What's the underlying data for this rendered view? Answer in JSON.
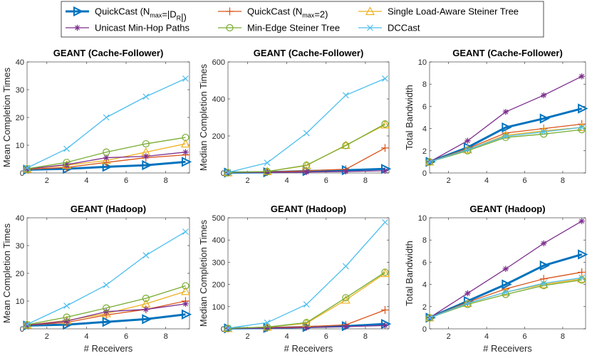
{
  "legend": {
    "entries": [
      {
        "id": "qc_full",
        "label_pre": "QuickCast (N",
        "label_sub1": "max",
        "label_mid": "=|D",
        "label_sub2": "R",
        "label_post": "|)",
        "color": "#0072BD",
        "marker": "triangle-right",
        "width": 3
      },
      {
        "id": "qc2",
        "label_pre": "QuickCast (N",
        "label_sub1": "max",
        "label_mid": "=2)",
        "label_sub2": "",
        "label_post": "",
        "color": "#D95319",
        "marker": "plus",
        "width": 1.3
      },
      {
        "id": "slast",
        "label_pre": "Single Load-Aware Steiner Tree",
        "label_sub1": "",
        "label_mid": "",
        "label_sub2": "",
        "label_post": "",
        "color": "#EDB120",
        "marker": "triangle-up",
        "width": 1.3
      },
      {
        "id": "unicast",
        "label_pre": "Unicast Min-Hop Paths",
        "label_sub1": "",
        "label_mid": "",
        "label_sub2": "",
        "label_post": "",
        "color": "#7E2F8E",
        "marker": "asterisk",
        "width": 1.3
      },
      {
        "id": "mest",
        "label_pre": "Min-Edge Steiner Tree",
        "label_sub1": "",
        "label_mid": "",
        "label_sub2": "",
        "label_post": "",
        "color": "#77AC30",
        "marker": "circle",
        "width": 1.3
      },
      {
        "id": "dccast",
        "label_pre": "DCCast",
        "label_sub1": "",
        "label_mid": "",
        "label_sub2": "",
        "label_post": "",
        "color": "#4DBEEE",
        "marker": "x",
        "width": 1.3
      }
    ]
  },
  "chart_data": [
    {
      "type": "line",
      "title": "GEANT (Cache-Follower)",
      "xlabel": "",
      "ylabel": "Mean Completion Times",
      "x": [
        1,
        3,
        5,
        7,
        9
      ],
      "xlim": [
        1,
        9.2
      ],
      "ylim": [
        0,
        40
      ],
      "xticks": [
        2,
        4,
        6,
        8
      ],
      "yticks": [
        0,
        10,
        20,
        30,
        40
      ],
      "series": [
        {
          "id": "qc_full",
          "values": [
            1.2,
            1.5,
            2.2,
            2.8,
            4.0
          ]
        },
        {
          "id": "qc2",
          "values": [
            1.3,
            2.0,
            3.8,
            5.5,
            6.5
          ]
        },
        {
          "id": "slast",
          "values": [
            1.4,
            2.8,
            4.5,
            7.5,
            10.5
          ]
        },
        {
          "id": "unicast",
          "values": [
            1.4,
            3.0,
            5.5,
            6.0,
            7.5
          ]
        },
        {
          "id": "mest",
          "values": [
            1.5,
            3.8,
            7.5,
            10.5,
            12.8
          ]
        },
        {
          "id": "dccast",
          "values": [
            1.8,
            8.7,
            20.0,
            27.5,
            34.0
          ]
        }
      ]
    },
    {
      "type": "line",
      "title": "GEANT (Cache-Follower)",
      "xlabel": "",
      "ylabel": "Median Completion Times",
      "x": [
        1,
        3,
        5,
        7,
        9
      ],
      "xlim": [
        1,
        9.2
      ],
      "ylim": [
        0,
        600
      ],
      "xticks": [
        2,
        4,
        6,
        8
      ],
      "yticks": [
        0,
        200,
        400,
        600
      ],
      "series": [
        {
          "id": "qc_full",
          "values": [
            2,
            4,
            10,
            15,
            22
          ]
        },
        {
          "id": "qc2",
          "values": [
            2,
            5,
            12,
            20,
            135
          ]
        },
        {
          "id": "slast",
          "values": [
            2,
            8,
            40,
            150,
            260
          ]
        },
        {
          "id": "unicast",
          "values": [
            2,
            3,
            5,
            8,
            12
          ]
        },
        {
          "id": "mest",
          "values": [
            2,
            8,
            42,
            148,
            265
          ]
        },
        {
          "id": "dccast",
          "values": [
            3,
            55,
            215,
            420,
            510
          ]
        }
      ]
    },
    {
      "type": "line",
      "title": "GEANT (Cache-Follower)",
      "xlabel": "",
      "ylabel": "Total Bandwidth",
      "x": [
        1,
        3,
        5,
        7,
        9
      ],
      "xlim": [
        1,
        9.2
      ],
      "ylim": [
        0,
        10
      ],
      "xticks": [
        2,
        4,
        6,
        8
      ],
      "yticks": [
        0,
        2,
        4,
        6,
        8,
        10
      ],
      "series": [
        {
          "id": "qc_full",
          "values": [
            1.0,
            2.3,
            4.1,
            4.9,
            5.8
          ]
        },
        {
          "id": "qc2",
          "values": [
            1.0,
            2.2,
            3.6,
            4.0,
            4.4
          ]
        },
        {
          "id": "slast",
          "values": [
            1.0,
            2.1,
            3.4,
            3.8,
            4.1
          ]
        },
        {
          "id": "unicast",
          "values": [
            1.0,
            2.9,
            5.5,
            7.0,
            8.7
          ]
        },
        {
          "id": "mest",
          "values": [
            1.0,
            2.0,
            3.2,
            3.5,
            3.9
          ]
        },
        {
          "id": "dccast",
          "values": [
            1.0,
            2.1,
            3.3,
            3.7,
            4.1
          ]
        }
      ]
    },
    {
      "type": "line",
      "title": "GEANT (Hadoop)",
      "xlabel": "# Receivers",
      "ylabel": "Mean Completion Times",
      "x": [
        1,
        3,
        5,
        7,
        9
      ],
      "xlim": [
        1,
        9.2
      ],
      "ylim": [
        0,
        40
      ],
      "xticks": [
        2,
        4,
        6,
        8
      ],
      "yticks": [
        0,
        10,
        20,
        30,
        40
      ],
      "series": [
        {
          "id": "qc_full",
          "values": [
            1.2,
            1.5,
            2.5,
            3.5,
            5.2
          ]
        },
        {
          "id": "qc2",
          "values": [
            1.3,
            2.3,
            5.0,
            7.0,
            10.0
          ]
        },
        {
          "id": "slast",
          "values": [
            1.4,
            3.0,
            5.5,
            9.0,
            13.5
          ]
        },
        {
          "id": "unicast",
          "values": [
            1.3,
            2.8,
            6.2,
            7.0,
            9.0
          ]
        },
        {
          "id": "mest",
          "values": [
            1.5,
            4.2,
            7.5,
            11.0,
            15.5
          ]
        },
        {
          "id": "dccast",
          "values": [
            1.6,
            8.3,
            15.8,
            26.5,
            35.0
          ]
        }
      ]
    },
    {
      "type": "line",
      "title": "GEANT (Hadoop)",
      "xlabel": "# Receivers",
      "ylabel": "Median Completion Times",
      "x": [
        1,
        3,
        5,
        7,
        9
      ],
      "xlim": [
        1,
        9.2
      ],
      "ylim": [
        0,
        500
      ],
      "xticks": [
        2,
        4,
        6,
        8
      ],
      "yticks": [
        0,
        100,
        200,
        300,
        400,
        500
      ],
      "series": [
        {
          "id": "qc_full",
          "values": [
            2,
            4,
            8,
            12,
            22
          ]
        },
        {
          "id": "qc2",
          "values": [
            2,
            5,
            10,
            18,
            85
          ]
        },
        {
          "id": "slast",
          "values": [
            2,
            8,
            25,
            130,
            250
          ]
        },
        {
          "id": "unicast",
          "values": [
            2,
            3,
            6,
            10,
            15
          ]
        },
        {
          "id": "mest",
          "values": [
            2,
            8,
            28,
            140,
            255
          ]
        },
        {
          "id": "dccast",
          "values": [
            3,
            28,
            110,
            282,
            480
          ]
        }
      ]
    },
    {
      "type": "line",
      "title": "GEANT (Hadoop)",
      "xlabel": "# Receivers",
      "ylabel": "Total Bandwidth",
      "x": [
        1,
        3,
        5,
        7,
        9
      ],
      "xlim": [
        1,
        9.2
      ],
      "ylim": [
        0,
        10
      ],
      "xticks": [
        2,
        4,
        6,
        8
      ],
      "yticks": [
        0,
        2,
        4,
        6,
        8,
        10
      ],
      "series": [
        {
          "id": "qc_full",
          "values": [
            1.0,
            2.5,
            4.0,
            5.7,
            6.7
          ]
        },
        {
          "id": "qc2",
          "values": [
            1.0,
            2.4,
            3.6,
            4.5,
            5.1
          ]
        },
        {
          "id": "slast",
          "values": [
            1.0,
            2.3,
            3.3,
            4.0,
            4.5
          ]
        },
        {
          "id": "unicast",
          "values": [
            1.0,
            3.2,
            5.4,
            7.7,
            9.7
          ]
        },
        {
          "id": "mest",
          "values": [
            1.0,
            2.2,
            3.1,
            3.9,
            4.4
          ]
        },
        {
          "id": "dccast",
          "values": [
            1.0,
            2.3,
            3.3,
            4.1,
            4.6
          ]
        }
      ]
    }
  ]
}
